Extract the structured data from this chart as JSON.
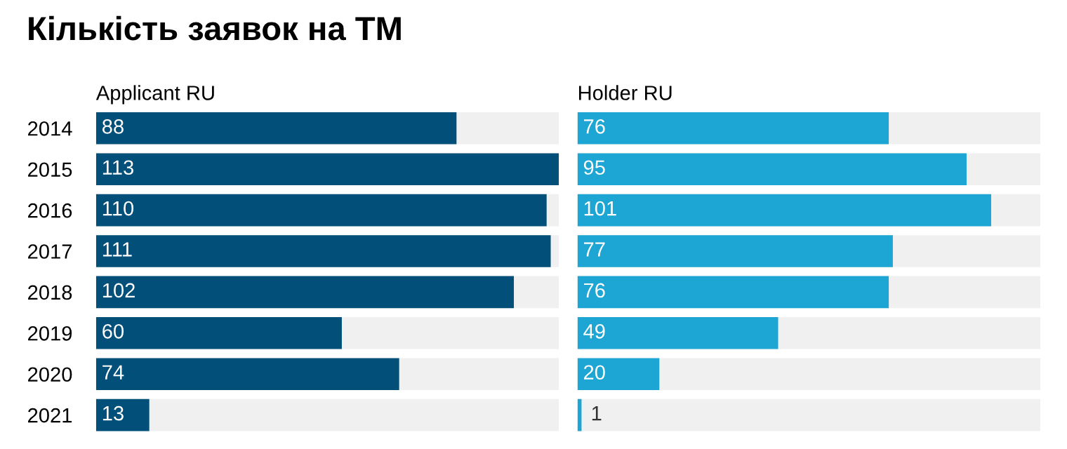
{
  "chart_data": [
    {
      "type": "bar",
      "orientation": "horizontal",
      "title": "Кількість заявок на ТМ",
      "subtitle": "Applicant RU",
      "tick_labels": "y",
      "data_labels": true,
      "grid": false,
      "legend": false,
      "categories": [
        "2014",
        "2015",
        "2016",
        "2017",
        "2018",
        "2019",
        "2020",
        "2021"
      ],
      "series": [
        {
          "color": "#02507a",
          "values": [
            88,
            113,
            110,
            111,
            102,
            60,
            74,
            13
          ]
        }
      ]
    },
    {
      "type": "bar",
      "orientation": "horizontal",
      "subtitle": "Holder RU",
      "tick_labels": false,
      "data_labels": true,
      "grid": false,
      "legend": false,
      "categories": [
        "2014",
        "2015",
        "2016",
        "2017",
        "2018",
        "2019",
        "2020",
        "2021"
      ],
      "series": [
        {
          "color": "#1da6d3",
          "values": [
            76,
            95,
            101,
            77,
            76,
            49,
            20,
            1
          ]
        }
      ]
    }
  ]
}
